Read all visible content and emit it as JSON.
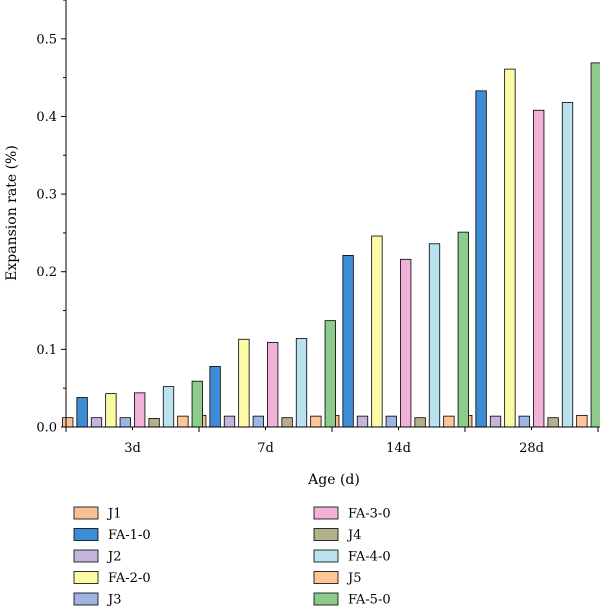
{
  "chart_data": {
    "type": "bar",
    "title": "",
    "xlabel": "Age (d)",
    "ylabel": "Expansion rate (%)",
    "ylim": [
      0,
      0.55
    ],
    "yticks": [
      "0.0",
      "0.1",
      "0.2",
      "0.3",
      "0.4",
      "0.5"
    ],
    "categories": [
      "3d",
      "7d",
      "14d",
      "28d"
    ],
    "legend_position": "below",
    "series": [
      {
        "name": "J1",
        "color": "#F9C094",
        "values": [
          0.012,
          0.015,
          0.015,
          0.015
        ]
      },
      {
        "name": "FA-1-0",
        "color": "#3C8DD6",
        "values": [
          0.038,
          0.078,
          0.221,
          0.433
        ]
      },
      {
        "name": "J2",
        "color": "#C5B5DD",
        "values": [
          0.012,
          0.014,
          0.014,
          0.014
        ]
      },
      {
        "name": "FA-2-0",
        "color": "#FDFAA5",
        "values": [
          0.043,
          0.113,
          0.246,
          0.461
        ]
      },
      {
        "name": "J3",
        "color": "#9FB4E1",
        "values": [
          0.012,
          0.014,
          0.014,
          0.014
        ]
      },
      {
        "name": "FA-3-0",
        "color": "#F0B2D9",
        "values": [
          0.044,
          0.109,
          0.216,
          0.408
        ]
      },
      {
        "name": "J4",
        "color": "#B3B08C",
        "values": [
          0.011,
          0.012,
          0.012,
          0.012
        ]
      },
      {
        "name": "FA-4-0",
        "color": "#B9E2EE",
        "values": [
          0.052,
          0.114,
          0.236,
          0.418
        ]
      },
      {
        "name": "J5",
        "color": "#FCC698",
        "values": [
          0.014,
          0.014,
          0.014,
          0.015
        ]
      },
      {
        "name": "FA-5-0",
        "color": "#8CCB8B",
        "values": [
          0.059,
          0.137,
          0.251,
          0.469
        ]
      }
    ]
  }
}
